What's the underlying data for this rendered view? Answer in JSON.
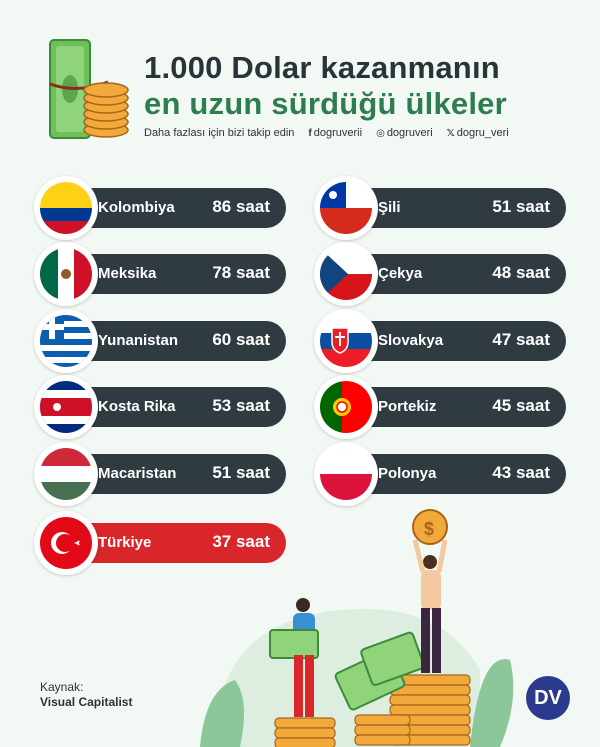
{
  "header": {
    "title_line1": "1.000 Dolar kazanmanın",
    "title_line2": "en uzun sürdüğü ülkeler",
    "follow_text": "Daha fazlası için bizi takip edin",
    "socials": [
      {
        "icon": "facebook-icon",
        "glyph": "f",
        "handle": "dogruverii"
      },
      {
        "icon": "instagram-icon",
        "glyph": "◎",
        "handle": "dogruveri"
      },
      {
        "icon": "x-icon",
        "glyph": "𝕏",
        "handle": "dogru_veri"
      }
    ]
  },
  "chart_data": {
    "type": "bar",
    "categories": [
      "Kolombiya",
      "Meksika",
      "Yunanistan",
      "Kosta Rika",
      "Macaristan",
      "Türkiye",
      "Şili",
      "Çekya",
      "Slovakya",
      "Portekiz",
      "Polonya"
    ],
    "values": [
      86,
      78,
      60,
      53,
      51,
      37,
      51,
      48,
      47,
      45,
      43
    ],
    "labels": [
      "86 saat",
      "78 saat",
      "60 saat",
      "53 saat",
      "51 saat",
      "37 saat",
      "51 saat",
      "48 saat",
      "47 saat",
      "45 saat",
      "43 saat"
    ],
    "unit": "saat",
    "highlight": "Türkiye",
    "colors": {
      "default": "#2f3b40",
      "highlight": "#d8262b",
      "text": "#ffffff"
    }
  },
  "source": {
    "label": "Kaynak:",
    "value": "Visual Capitalist"
  },
  "logo_text": "DV",
  "colors": {
    "background": "#f2f8f3",
    "title_dark": "#2a3338",
    "title_green": "#2e7d4f"
  }
}
